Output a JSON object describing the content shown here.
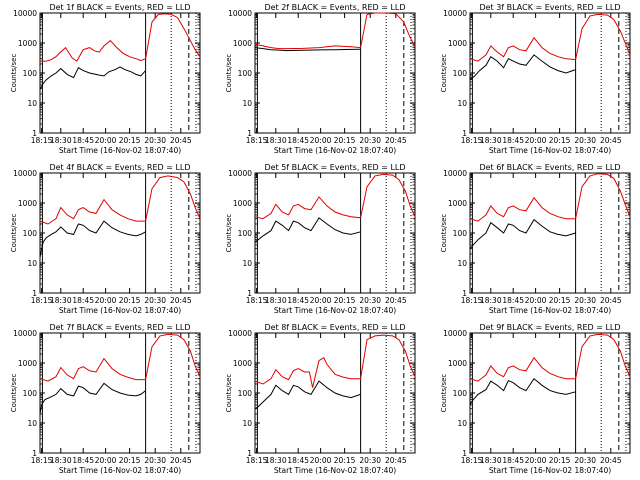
{
  "chart_data": [
    {
      "type": "line",
      "title": "Det 1f BLACK = Events, RED = LLD",
      "xlabel": "Start Time (16-Nov-02 18:07:40)",
      "ylabel": "Counts/sec",
      "xticks": [
        "18:15",
        "18:30",
        "18:45",
        "20:00",
        "20:15",
        "20:30",
        "20:45"
      ],
      "yticks": [
        "1",
        "10",
        "100",
        "1000",
        "10000"
      ],
      "ylim": [
        1,
        10000
      ],
      "yscale": "log",
      "series": [
        {
          "color": "#000000",
          "x": [
            0,
            0.01,
            0.02,
            0.04,
            0.07,
            0.1,
            0.13,
            0.17,
            0.21,
            0.24,
            0.27,
            0.31,
            0.35,
            0.37,
            0.4,
            0.43,
            0.47,
            0.5,
            0.53,
            0.57,
            0.6,
            0.63,
            0.66
          ],
          "y": [
            30,
            35,
            45,
            60,
            80,
            100,
            140,
            90,
            70,
            150,
            120,
            100,
            90,
            85,
            80,
            110,
            130,
            160,
            130,
            110,
            90,
            80,
            120
          ]
        },
        {
          "color": "#e00000",
          "x": [
            0,
            0.04,
            0.07,
            0.1,
            0.12,
            0.16,
            0.2,
            0.23,
            0.27,
            0.31,
            0.34,
            0.37,
            0.4,
            0.44,
            0.48,
            0.52,
            0.56,
            0.6,
            0.63,
            0.66,
            0.7,
            0.74,
            0.78,
            0.82,
            0.86,
            0.9,
            0.93,
            0.97,
            1
          ],
          "y": [
            250,
            250,
            280,
            350,
            450,
            700,
            320,
            250,
            600,
            700,
            550,
            500,
            800,
            1200,
            700,
            450,
            350,
            300,
            260,
            300,
            5000,
            9000,
            9500,
            9000,
            7000,
            3000,
            1500,
            600,
            350
          ]
        }
      ]
    },
    {
      "type": "line",
      "title": "Det 2f BLACK = Events, RED = LLD",
      "xlabel": "Start Time (16-Nov-02 18:07:40)",
      "ylabel": "Counts/sec",
      "xticks": [
        "18:15",
        "18:30",
        "18:45",
        "20:00",
        "20:15",
        "20:30",
        "20:45"
      ],
      "yticks": [
        "1",
        "10",
        "100",
        "1000",
        "10000"
      ],
      "ylim": [
        1,
        10000
      ],
      "yscale": "log",
      "series": [
        {
          "color": "#000000",
          "x": [
            0,
            0.05,
            0.1,
            0.15,
            0.2,
            0.3,
            0.4,
            0.5,
            0.6,
            0.66
          ],
          "y": [
            700,
            650,
            600,
            580,
            560,
            570,
            590,
            600,
            610,
            620
          ]
        },
        {
          "color": "#e00000",
          "x": [
            0,
            0.05,
            0.1,
            0.15,
            0.2,
            0.3,
            0.4,
            0.5,
            0.6,
            0.66,
            0.7,
            0.75,
            0.82,
            0.88,
            0.93,
            0.97,
            1
          ],
          "y": [
            900,
            800,
            700,
            650,
            650,
            660,
            700,
            800,
            750,
            700,
            9000,
            10000,
            10000,
            9500,
            5000,
            1500,
            800
          ]
        }
      ]
    },
    {
      "type": "line",
      "title": "Det 3f BLACK = Events, RED = LLD",
      "xlabel": "Start Time (16-Nov-02 18:07:40)",
      "ylabel": "Counts/sec",
      "xticks": [
        "18:15",
        "18:30",
        "18:45",
        "20:00",
        "20:15",
        "20:30",
        "20:45"
      ],
      "yticks": [
        "1",
        "10",
        "100",
        "1000",
        "10000"
      ],
      "ylim": [
        1,
        10000
      ],
      "yscale": "log",
      "series": [
        {
          "color": "#000000",
          "x": [
            0,
            0.03,
            0.06,
            0.1,
            0.13,
            0.17,
            0.21,
            0.24,
            0.27,
            0.31,
            0.35,
            0.4,
            0.45,
            0.5,
            0.55,
            0.6,
            0.66
          ],
          "y": [
            60,
            80,
            120,
            180,
            350,
            250,
            150,
            300,
            250,
            200,
            180,
            400,
            250,
            160,
            120,
            100,
            130
          ]
        },
        {
          "color": "#e00000",
          "x": [
            0,
            0.05,
            0.1,
            0.13,
            0.17,
            0.21,
            0.24,
            0.27,
            0.31,
            0.35,
            0.4,
            0.45,
            0.5,
            0.55,
            0.6,
            0.66,
            0.7,
            0.75,
            0.8,
            0.86,
            0.9,
            0.94,
            0.97,
            1
          ],
          "y": [
            300,
            250,
            400,
            800,
            500,
            350,
            700,
            800,
            600,
            550,
            1500,
            700,
            450,
            350,
            300,
            280,
            3000,
            8000,
            9000,
            8500,
            6000,
            2500,
            1000,
            400
          ]
        }
      ]
    },
    {
      "type": "line",
      "title": "Det 4f BLACK = Events, RED = LLD",
      "xlabel": "Start Time (16-Nov-02 18:07:40)",
      "ylabel": "Counts/sec",
      "xticks": [
        "18:15",
        "18:30",
        "18:45",
        "20:00",
        "20:15",
        "20:30",
        "20:45"
      ],
      "yticks": [
        "1",
        "10",
        "100",
        "1000",
        "10000"
      ],
      "ylim": [
        1,
        10000
      ],
      "yscale": "log",
      "series": [
        {
          "color": "#000000",
          "x": [
            0,
            0.01,
            0.02,
            0.04,
            0.07,
            0.1,
            0.13,
            0.17,
            0.21,
            0.24,
            0.27,
            0.31,
            0.35,
            0.4,
            0.45,
            0.5,
            0.55,
            0.6,
            0.63,
            0.66
          ],
          "y": [
            15,
            30,
            50,
            70,
            90,
            110,
            160,
            100,
            90,
            200,
            180,
            120,
            100,
            250,
            150,
            110,
            90,
            80,
            90,
            110
          ]
        },
        {
          "color": "#e00000",
          "x": [
            0,
            0.05,
            0.1,
            0.13,
            0.17,
            0.21,
            0.24,
            0.27,
            0.31,
            0.35,
            0.4,
            0.45,
            0.5,
            0.55,
            0.6,
            0.66,
            0.7,
            0.75,
            0.8,
            0.86,
            0.9,
            0.94,
            0.97,
            1
          ],
          "y": [
            250,
            200,
            300,
            700,
            400,
            300,
            600,
            700,
            500,
            450,
            1300,
            600,
            400,
            300,
            250,
            250,
            3000,
            7000,
            8000,
            7000,
            5000,
            2000,
            700,
            300
          ]
        }
      ]
    },
    {
      "type": "line",
      "title": "Det 5f BLACK = Events, RED = LLD",
      "xlabel": "Start Time (16-Nov-02 18:07:40)",
      "ylabel": "Counts/sec",
      "xticks": [
        "18:15",
        "18:30",
        "18:45",
        "20:00",
        "20:15",
        "20:30",
        "20:45"
      ],
      "yticks": [
        "1",
        "10",
        "100",
        "1000",
        "10000"
      ],
      "ylim": [
        1,
        10000
      ],
      "yscale": "log",
      "series": [
        {
          "color": "#000000",
          "x": [
            0,
            0.02,
            0.05,
            0.1,
            0.13,
            0.17,
            0.21,
            0.24,
            0.27,
            0.31,
            0.35,
            0.4,
            0.45,
            0.5,
            0.55,
            0.6,
            0.66
          ],
          "y": [
            50,
            60,
            80,
            120,
            250,
            180,
            120,
            250,
            220,
            150,
            120,
            320,
            200,
            130,
            100,
            90,
            110
          ]
        },
        {
          "color": "#e00000",
          "x": [
            0,
            0.05,
            0.1,
            0.13,
            0.17,
            0.21,
            0.24,
            0.27,
            0.31,
            0.35,
            0.4,
            0.45,
            0.5,
            0.55,
            0.6,
            0.66,
            0.7,
            0.75,
            0.8,
            0.86,
            0.9,
            0.94,
            0.97,
            1
          ],
          "y": [
            350,
            300,
            450,
            900,
            500,
            400,
            800,
            900,
            650,
            600,
            1600,
            800,
            500,
            400,
            350,
            320,
            3500,
            8000,
            9000,
            8500,
            6000,
            2500,
            800,
            350
          ]
        }
      ]
    },
    {
      "type": "line",
      "title": "Det 6f BLACK = Events, RED = LLD",
      "xlabel": "Start Time (16-Nov-02 18:07:40)",
      "ylabel": "Counts/sec",
      "xticks": [
        "18:15",
        "18:30",
        "18:45",
        "20:00",
        "20:15",
        "20:30",
        "20:45"
      ],
      "yticks": [
        "1",
        "10",
        "100",
        "1000",
        "10000"
      ],
      "ylim": [
        1,
        10000
      ],
      "yscale": "log",
      "series": [
        {
          "color": "#000000",
          "x": [
            0,
            0.02,
            0.05,
            0.1,
            0.13,
            0.17,
            0.21,
            0.24,
            0.27,
            0.31,
            0.35,
            0.4,
            0.45,
            0.5,
            0.55,
            0.6,
            0.66
          ],
          "y": [
            30,
            40,
            60,
            100,
            220,
            150,
            100,
            200,
            180,
            120,
            100,
            280,
            170,
            110,
            90,
            80,
            100
          ]
        },
        {
          "color": "#e00000",
          "x": [
            0,
            0.05,
            0.1,
            0.13,
            0.17,
            0.21,
            0.24,
            0.27,
            0.31,
            0.35,
            0.4,
            0.45,
            0.5,
            0.55,
            0.6,
            0.66,
            0.7,
            0.75,
            0.8,
            0.86,
            0.9,
            0.94,
            0.97,
            1
          ],
          "y": [
            300,
            250,
            400,
            800,
            450,
            350,
            700,
            800,
            600,
            550,
            1500,
            700,
            450,
            350,
            300,
            300,
            3500,
            8000,
            9500,
            9000,
            6500,
            2500,
            900,
            350
          ]
        }
      ]
    },
    {
      "type": "line",
      "title": "Det 7f BLACK = Events, RED = LLD",
      "xlabel": "Start Time (16-Nov-02 18:07:40)",
      "ylabel": "Counts/sec",
      "xticks": [
        "18:15",
        "18:30",
        "18:45",
        "20:00",
        "20:15",
        "20:30",
        "20:45"
      ],
      "yticks": [
        "1",
        "10",
        "100",
        "1000",
        "10000"
      ],
      "ylim": [
        1,
        10000
      ],
      "yscale": "log",
      "series": [
        {
          "color": "#000000",
          "x": [
            0,
            0.01,
            0.03,
            0.06,
            0.1,
            0.13,
            0.17,
            0.21,
            0.24,
            0.27,
            0.31,
            0.35,
            0.4,
            0.45,
            0.5,
            0.55,
            0.6,
            0.63,
            0.66
          ],
          "y": [
            20,
            40,
            60,
            70,
            90,
            140,
            90,
            80,
            170,
            150,
            100,
            90,
            210,
            130,
            100,
            85,
            80,
            90,
            120
          ]
        },
        {
          "color": "#e00000",
          "x": [
            0,
            0.05,
            0.1,
            0.13,
            0.17,
            0.21,
            0.24,
            0.27,
            0.31,
            0.35,
            0.4,
            0.45,
            0.5,
            0.55,
            0.6,
            0.66,
            0.7,
            0.75,
            0.8,
            0.86,
            0.9,
            0.94,
            0.97,
            1
          ],
          "y": [
            300,
            250,
            350,
            700,
            400,
            300,
            650,
            750,
            550,
            500,
            1400,
            650,
            420,
            330,
            280,
            280,
            3500,
            8000,
            9000,
            8500,
            6000,
            2500,
            800,
            350
          ]
        }
      ]
    },
    {
      "type": "line",
      "title": "Det 8f BLACK = Events, RED = LLD",
      "xlabel": "Start Time (16-Nov-02 18:07:40)",
      "ylabel": "Counts/sec",
      "xticks": [
        "18:15",
        "18:30",
        "18:45",
        "20:00",
        "20:15",
        "20:30",
        "20:45"
      ],
      "yticks": [
        "1",
        "10",
        "100",
        "1000",
        "10000"
      ],
      "ylim": [
        1,
        10000
      ],
      "yscale": "log",
      "series": [
        {
          "color": "#000000",
          "x": [
            0,
            0.02,
            0.05,
            0.1,
            0.13,
            0.17,
            0.21,
            0.24,
            0.27,
            0.31,
            0.35,
            0.4,
            0.45,
            0.5,
            0.55,
            0.6,
            0.66
          ],
          "y": [
            30,
            35,
            50,
            90,
            180,
            120,
            90,
            180,
            160,
            110,
            90,
            250,
            150,
            100,
            80,
            70,
            90
          ]
        },
        {
          "color": "#e00000",
          "x": [
            0,
            0.05,
            0.1,
            0.13,
            0.17,
            0.21,
            0.24,
            0.27,
            0.31,
            0.34,
            0.36,
            0.4,
            0.43,
            0.45,
            0.5,
            0.55,
            0.6,
            0.66,
            0.7,
            0.75,
            0.8,
            0.86,
            0.9,
            0.94,
            0.97,
            1
          ],
          "y": [
            250,
            200,
            300,
            600,
            350,
            280,
            550,
            650,
            500,
            500,
            150,
            1200,
            1500,
            900,
            420,
            340,
            300,
            300,
            6000,
            8000,
            8500,
            8000,
            6000,
            2500,
            800,
            350
          ]
        }
      ]
    },
    {
      "type": "line",
      "title": "Det 9f BLACK = Events, RED = LLD",
      "xlabel": "Start Time (16-Nov-02 18:07:40)",
      "ylabel": "Counts/sec",
      "xticks": [
        "18:15",
        "18:30",
        "18:45",
        "20:00",
        "20:15",
        "20:30",
        "20:45"
      ],
      "yticks": [
        "1",
        "10",
        "100",
        "1000",
        "10000"
      ],
      "ylim": [
        1,
        10000
      ],
      "yscale": "log",
      "series": [
        {
          "color": "#000000",
          "x": [
            0,
            0.02,
            0.05,
            0.1,
            0.13,
            0.17,
            0.21,
            0.24,
            0.27,
            0.31,
            0.35,
            0.4,
            0.45,
            0.5,
            0.55,
            0.6,
            0.66
          ],
          "y": [
            40,
            60,
            90,
            130,
            250,
            180,
            120,
            260,
            220,
            150,
            120,
            300,
            180,
            120,
            100,
            90,
            110
          ]
        },
        {
          "color": "#e00000",
          "x": [
            0,
            0.05,
            0.1,
            0.13,
            0.17,
            0.21,
            0.24,
            0.27,
            0.31,
            0.35,
            0.4,
            0.45,
            0.5,
            0.55,
            0.6,
            0.66,
            0.7,
            0.75,
            0.8,
            0.86,
            0.9,
            0.94,
            0.97,
            1
          ],
          "y": [
            300,
            250,
            400,
            800,
            450,
            350,
            700,
            800,
            600,
            550,
            1500,
            700,
            450,
            350,
            300,
            300,
            3500,
            8000,
            9000,
            8500,
            6000,
            2500,
            800,
            350
          ]
        }
      ]
    }
  ]
}
